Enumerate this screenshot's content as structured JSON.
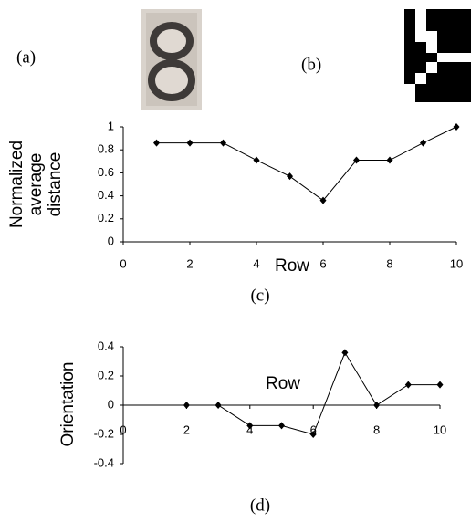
{
  "images": [
    {
      "label": "(a)"
    },
    {
      "label": "(b)"
    }
  ],
  "chart_data": [
    {
      "type": "line",
      "caption": "(c)",
      "xlabel": "Row",
      "ylabel": [
        "Normalized",
        "average",
        "distance"
      ],
      "x": [
        1,
        2,
        3,
        4,
        5,
        6,
        7,
        8,
        9,
        10
      ],
      "values": [
        0.86,
        0.86,
        0.86,
        0.71,
        0.57,
        0.36,
        0.71,
        0.71,
        0.86,
        1.0
      ],
      "color": "#000000",
      "xlim": [
        0,
        10
      ],
      "xticks": [
        0,
        2,
        4,
        6,
        8,
        10
      ],
      "ylim": [
        0,
        1
      ],
      "yticks": [
        0,
        0.2,
        0.4,
        0.6,
        0.8,
        1
      ]
    },
    {
      "type": "line",
      "caption": "(d)",
      "xlabel": "Row",
      "ylabel": [
        "Orientation"
      ],
      "x": [
        2,
        3,
        4,
        5,
        6,
        7,
        8,
        9,
        10
      ],
      "values": [
        0,
        0,
        -0.14,
        -0.14,
        -0.2,
        0.36,
        0,
        0.14,
        0.14
      ],
      "color": "#000000",
      "xlim": [
        0,
        10
      ],
      "xticks": [
        0,
        2,
        4,
        6,
        8,
        10
      ],
      "ylim": [
        -0.4,
        0.4
      ],
      "yticks": [
        -0.4,
        -0.2,
        0,
        0.2,
        0.4
      ]
    }
  ]
}
